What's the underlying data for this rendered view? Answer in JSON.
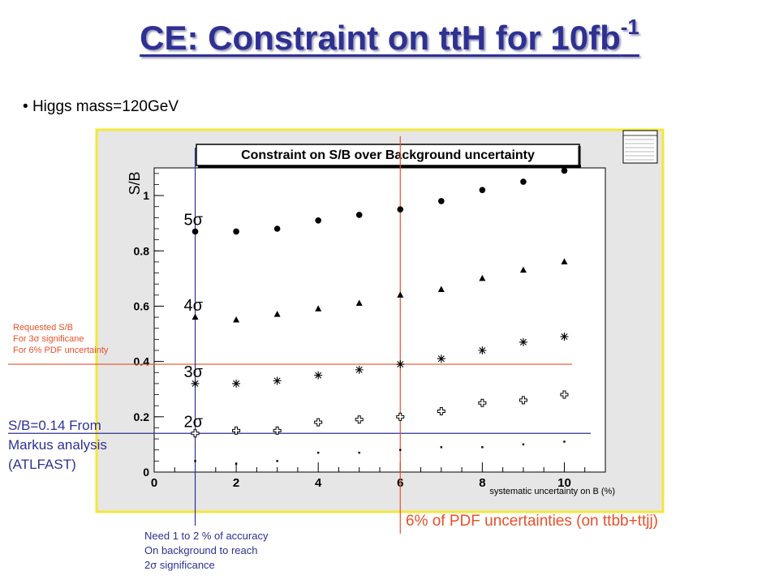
{
  "slide": {
    "title": "CE: Constraint on ttH for 10fb",
    "title_sup": "-1",
    "bullet": "Higgs mass=120GeV",
    "notes": {
      "requested": [
        "Requested S/B",
        "For 3σ significane",
        "For 6% PDF uncertainty"
      ],
      "sb_markus": [
        "S/B=0.14 From",
        "Markus analysis",
        "(ATLFAST)"
      ],
      "accuracy": [
        "Need 1 to 2 % of accuracy",
        "On background to reach",
        "2σ significance"
      ],
      "pdf": "6% of PDF uncertainties (on ttbb+ttjj)"
    },
    "colors": {
      "title": "#2e3192",
      "frame": "#f2e83a",
      "red_note": "#e8502a",
      "blue_note": "#2e3192"
    }
  },
  "chart_data": {
    "type": "scatter",
    "title": "Constraint on S/B over Background uncertainty",
    "xlabel": "systematic uncertainty on B (%)",
    "ylabel": "S/B",
    "xlim": [
      0,
      11
    ],
    "ylim": [
      0,
      1.1
    ],
    "xticks": [
      0,
      2,
      4,
      6,
      8,
      10
    ],
    "yticks": [
      0,
      0.2,
      0.4,
      0.6,
      0.8,
      1
    ],
    "xtick_labels": [
      "0",
      "2",
      "4",
      "6",
      "8",
      "10"
    ],
    "ytick_labels": [
      "0",
      "0.2",
      "0.4",
      "0.6",
      "0.8",
      "1"
    ],
    "grid": false,
    "series": [
      {
        "name": "5σ",
        "marker": "circle",
        "x": [
          1,
          2,
          3,
          4,
          5,
          6,
          7,
          8,
          9,
          10
        ],
        "y": [
          0.87,
          0.87,
          0.88,
          0.91,
          0.93,
          0.95,
          0.98,
          1.02,
          1.05,
          1.09
        ]
      },
      {
        "name": "4σ",
        "marker": "triangle",
        "x": [
          1,
          2,
          3,
          4,
          5,
          6,
          7,
          8,
          9,
          10
        ],
        "y": [
          0.56,
          0.55,
          0.57,
          0.59,
          0.61,
          0.64,
          0.66,
          0.7,
          0.73,
          0.76
        ]
      },
      {
        "name": "3σ",
        "marker": "star",
        "x": [
          1,
          2,
          3,
          4,
          5,
          6,
          7,
          8,
          9,
          10
        ],
        "y": [
          0.32,
          0.32,
          0.33,
          0.35,
          0.37,
          0.39,
          0.41,
          0.44,
          0.47,
          0.49
        ]
      },
      {
        "name": "2σ",
        "marker": "cross",
        "x": [
          1,
          2,
          3,
          4,
          5,
          6,
          7,
          8,
          9,
          10
        ],
        "y": [
          0.14,
          0.15,
          0.15,
          0.18,
          0.19,
          0.2,
          0.22,
          0.25,
          0.26,
          0.28
        ]
      },
      {
        "name": "",
        "marker": "dot",
        "x": [
          1,
          2,
          3,
          4,
          5,
          6,
          7,
          8,
          9,
          10
        ],
        "y": [
          0.04,
          0.03,
          0.04,
          0.07,
          0.07,
          0.08,
          0.09,
          0.09,
          0.1,
          0.11
        ]
      }
    ],
    "reference_lines": [
      {
        "orientation": "horizontal",
        "y": 0.39,
        "color": "#e8502a"
      },
      {
        "orientation": "horizontal",
        "y": 0.14,
        "color": "#2e3192"
      },
      {
        "orientation": "vertical",
        "x": 6,
        "color": "#e8502a"
      },
      {
        "orientation": "vertical",
        "x": 1,
        "color": "#2e3192"
      }
    ]
  }
}
